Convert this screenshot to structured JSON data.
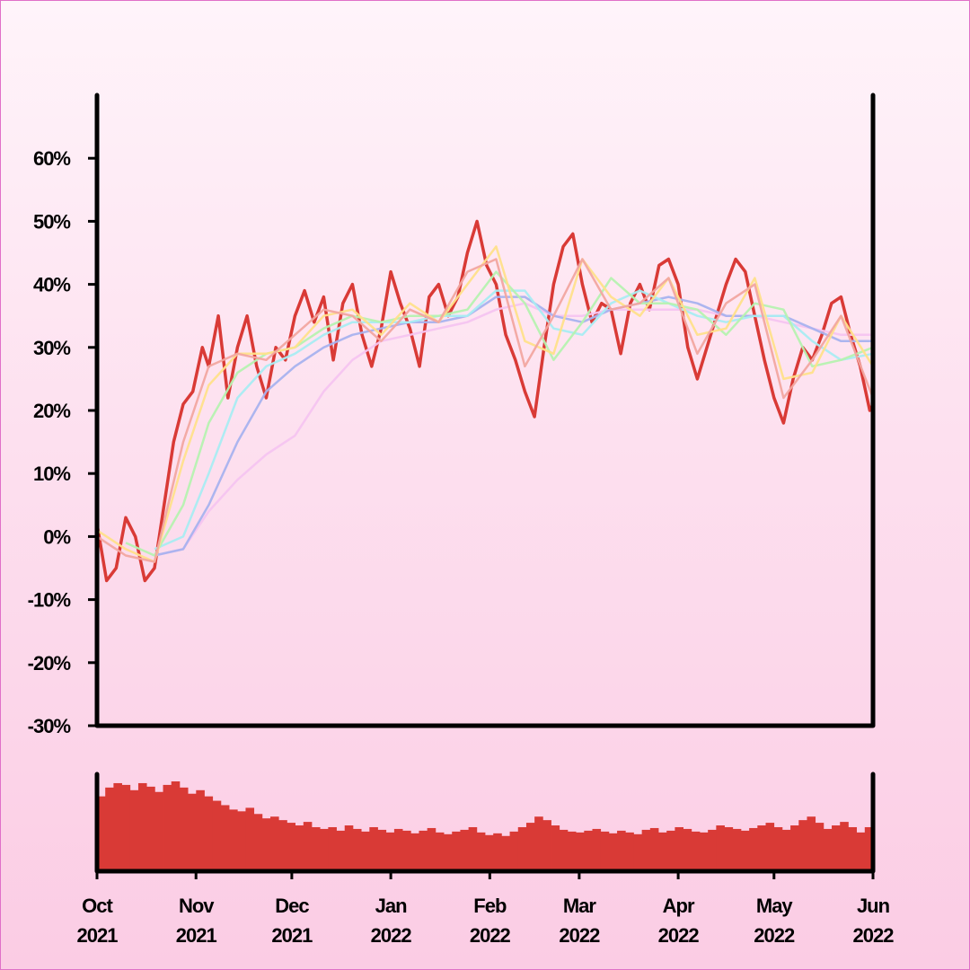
{
  "chart_data": {
    "type": "line",
    "title": "",
    "xlabel": "",
    "ylabel": "",
    "ylim": [
      -30,
      70
    ],
    "y_ticks": [
      "60%",
      "50%",
      "40%",
      "30%",
      "20%",
      "10%",
      "0%",
      "-10%",
      "-20%",
      "-30%"
    ],
    "y_tick_values": [
      60,
      50,
      40,
      30,
      20,
      10,
      0,
      -10,
      -20,
      -30
    ],
    "x_ticks": [
      {
        "month": "Oct",
        "year": "2021",
        "date": "2021-10-01"
      },
      {
        "month": "Nov",
        "year": "2021",
        "date": "2021-11-01"
      },
      {
        "month": "Dec",
        "year": "2021",
        "date": "2021-12-01"
      },
      {
        "month": "Jan",
        "year": "2022",
        "date": "2022-01-01"
      },
      {
        "month": "Feb",
        "year": "2022",
        "date": "2022-02-01"
      },
      {
        "month": "Mar",
        "year": "2022",
        "date": "2022-03-01"
      },
      {
        "month": "Apr",
        "year": "2022",
        "date": "2022-04-01"
      },
      {
        "month": "May",
        "year": "2022",
        "date": "2022-05-01"
      },
      {
        "month": "Jun",
        "year": "2022",
        "date": "2022-06-01"
      }
    ],
    "xlim": [
      "2021-10-01",
      "2022-06-01"
    ],
    "grid": false,
    "legend": "none",
    "main_series": {
      "color": "#d93a36",
      "points": [
        [
          "2021-10-01",
          2
        ],
        [
          "2021-10-04",
          -7
        ],
        [
          "2021-10-07",
          -5
        ],
        [
          "2021-10-10",
          3
        ],
        [
          "2021-10-13",
          0
        ],
        [
          "2021-10-16",
          -7
        ],
        [
          "2021-10-19",
          -5
        ],
        [
          "2021-10-22",
          5
        ],
        [
          "2021-10-25",
          15
        ],
        [
          "2021-10-28",
          21
        ],
        [
          "2021-10-31",
          23
        ],
        [
          "2021-11-03",
          30
        ],
        [
          "2021-11-05",
          27
        ],
        [
          "2021-11-08",
          35
        ],
        [
          "2021-11-11",
          22
        ],
        [
          "2021-11-14",
          30
        ],
        [
          "2021-11-17",
          35
        ],
        [
          "2021-11-20",
          27
        ],
        [
          "2021-11-23",
          22
        ],
        [
          "2021-11-26",
          30
        ],
        [
          "2021-11-29",
          28
        ],
        [
          "2021-12-02",
          35
        ],
        [
          "2021-12-05",
          39
        ],
        [
          "2021-12-08",
          34
        ],
        [
          "2021-12-11",
          38
        ],
        [
          "2021-12-14",
          28
        ],
        [
          "2021-12-17",
          37
        ],
        [
          "2021-12-20",
          40
        ],
        [
          "2021-12-23",
          32
        ],
        [
          "2021-12-26",
          27
        ],
        [
          "2021-12-29",
          33
        ],
        [
          "2022-01-01",
          42
        ],
        [
          "2022-01-04",
          37
        ],
        [
          "2022-01-07",
          33
        ],
        [
          "2022-01-10",
          27
        ],
        [
          "2022-01-13",
          38
        ],
        [
          "2022-01-16",
          40
        ],
        [
          "2022-01-19",
          35
        ],
        [
          "2022-01-22",
          38
        ],
        [
          "2022-01-25",
          45
        ],
        [
          "2022-01-28",
          50
        ],
        [
          "2022-01-31",
          43
        ],
        [
          "2022-02-03",
          40
        ],
        [
          "2022-02-06",
          32
        ],
        [
          "2022-02-09",
          28
        ],
        [
          "2022-02-12",
          23
        ],
        [
          "2022-02-15",
          19
        ],
        [
          "2022-02-18",
          30
        ],
        [
          "2022-02-21",
          40
        ],
        [
          "2022-02-24",
          46
        ],
        [
          "2022-02-27",
          48
        ],
        [
          "2022-03-02",
          40
        ],
        [
          "2022-03-05",
          34
        ],
        [
          "2022-03-08",
          37
        ],
        [
          "2022-03-11",
          36
        ],
        [
          "2022-03-14",
          29
        ],
        [
          "2022-03-17",
          37
        ],
        [
          "2022-03-20",
          40
        ],
        [
          "2022-03-23",
          36
        ],
        [
          "2022-03-26",
          43
        ],
        [
          "2022-03-29",
          44
        ],
        [
          "2022-04-01",
          40
        ],
        [
          "2022-04-04",
          30
        ],
        [
          "2022-04-07",
          25
        ],
        [
          "2022-04-10",
          30
        ],
        [
          "2022-04-13",
          35
        ],
        [
          "2022-04-16",
          40
        ],
        [
          "2022-04-19",
          44
        ],
        [
          "2022-04-22",
          42
        ],
        [
          "2022-04-25",
          35
        ],
        [
          "2022-04-28",
          28
        ],
        [
          "2022-05-01",
          22
        ],
        [
          "2022-05-04",
          18
        ],
        [
          "2022-05-07",
          25
        ],
        [
          "2022-05-10",
          30
        ],
        [
          "2022-05-13",
          28
        ],
        [
          "2022-05-16",
          32
        ],
        [
          "2022-05-19",
          37
        ],
        [
          "2022-05-22",
          38
        ],
        [
          "2022-05-25",
          32
        ],
        [
          "2022-05-28",
          27
        ],
        [
          "2022-05-31",
          20
        ],
        [
          "2022-06-01",
          21
        ]
      ]
    },
    "moving_averages": [
      {
        "color": "#f2a6a0",
        "points": [
          [
            "2021-10-01",
            0
          ],
          [
            "2021-10-10",
            -3
          ],
          [
            "2021-10-19",
            -4
          ],
          [
            "2021-10-28",
            15
          ],
          [
            "2021-11-05",
            27
          ],
          [
            "2021-11-14",
            29
          ],
          [
            "2021-11-23",
            28
          ],
          [
            "2021-12-02",
            32
          ],
          [
            "2021-12-11",
            36
          ],
          [
            "2021-12-20",
            35
          ],
          [
            "2021-12-29",
            31
          ],
          [
            "2022-01-07",
            36
          ],
          [
            "2022-01-16",
            34
          ],
          [
            "2022-01-25",
            42
          ],
          [
            "2022-02-03",
            44
          ],
          [
            "2022-02-12",
            27
          ],
          [
            "2022-02-21",
            35
          ],
          [
            "2022-03-02",
            44
          ],
          [
            "2022-03-11",
            36
          ],
          [
            "2022-03-20",
            37
          ],
          [
            "2022-03-29",
            41
          ],
          [
            "2022-04-07",
            29
          ],
          [
            "2022-04-16",
            37
          ],
          [
            "2022-04-25",
            40
          ],
          [
            "2022-05-04",
            22
          ],
          [
            "2022-05-13",
            28
          ],
          [
            "2022-05-22",
            35
          ],
          [
            "2022-06-01",
            22
          ]
        ]
      },
      {
        "color": "#ffe08a",
        "points": [
          [
            "2021-10-01",
            1
          ],
          [
            "2021-10-10",
            -2
          ],
          [
            "2021-10-19",
            -4
          ],
          [
            "2021-10-28",
            12
          ],
          [
            "2021-11-05",
            24
          ],
          [
            "2021-11-14",
            29
          ],
          [
            "2021-11-23",
            29
          ],
          [
            "2021-12-02",
            30
          ],
          [
            "2021-12-11",
            35
          ],
          [
            "2021-12-20",
            36
          ],
          [
            "2021-12-29",
            32
          ],
          [
            "2022-01-07",
            37
          ],
          [
            "2022-01-16",
            34
          ],
          [
            "2022-01-25",
            40
          ],
          [
            "2022-02-03",
            46
          ],
          [
            "2022-02-12",
            31
          ],
          [
            "2022-02-21",
            29
          ],
          [
            "2022-03-02",
            44
          ],
          [
            "2022-03-11",
            38
          ],
          [
            "2022-03-20",
            35
          ],
          [
            "2022-03-29",
            41
          ],
          [
            "2022-04-07",
            32
          ],
          [
            "2022-04-16",
            33
          ],
          [
            "2022-04-25",
            41
          ],
          [
            "2022-05-04",
            25
          ],
          [
            "2022-05-13",
            26
          ],
          [
            "2022-05-22",
            35
          ],
          [
            "2022-06-01",
            27
          ]
        ]
      },
      {
        "color": "#b6f2b0",
        "points": [
          [
            "2021-10-10",
            -1
          ],
          [
            "2021-10-19",
            -3
          ],
          [
            "2021-10-28",
            5
          ],
          [
            "2021-11-05",
            18
          ],
          [
            "2021-11-14",
            26
          ],
          [
            "2021-11-23",
            29
          ],
          [
            "2021-12-02",
            30
          ],
          [
            "2021-12-11",
            33
          ],
          [
            "2021-12-20",
            35
          ],
          [
            "2021-12-29",
            34
          ],
          [
            "2022-01-07",
            35
          ],
          [
            "2022-01-16",
            35
          ],
          [
            "2022-01-25",
            36
          ],
          [
            "2022-02-03",
            42
          ],
          [
            "2022-02-12",
            37
          ],
          [
            "2022-02-21",
            28
          ],
          [
            "2022-03-02",
            34
          ],
          [
            "2022-03-11",
            41
          ],
          [
            "2022-03-20",
            37
          ],
          [
            "2022-03-29",
            37
          ],
          [
            "2022-04-07",
            36
          ],
          [
            "2022-04-16",
            32
          ],
          [
            "2022-04-25",
            37
          ],
          [
            "2022-05-04",
            36
          ],
          [
            "2022-05-13",
            27
          ],
          [
            "2022-05-22",
            28
          ],
          [
            "2022-06-01",
            30
          ]
        ]
      },
      {
        "color": "#a9ecf2",
        "points": [
          [
            "2021-10-19",
            -2
          ],
          [
            "2021-10-28",
            0
          ],
          [
            "2021-11-05",
            10
          ],
          [
            "2021-11-14",
            22
          ],
          [
            "2021-11-23",
            27
          ],
          [
            "2021-12-02",
            29
          ],
          [
            "2021-12-11",
            32
          ],
          [
            "2021-12-20",
            34
          ],
          [
            "2021-12-29",
            34
          ],
          [
            "2022-01-07",
            34
          ],
          [
            "2022-01-16",
            35
          ],
          [
            "2022-01-25",
            35
          ],
          [
            "2022-02-03",
            39
          ],
          [
            "2022-02-12",
            39
          ],
          [
            "2022-02-21",
            33
          ],
          [
            "2022-03-02",
            32
          ],
          [
            "2022-03-11",
            37
          ],
          [
            "2022-03-20",
            39
          ],
          [
            "2022-03-29",
            37
          ],
          [
            "2022-04-07",
            35
          ],
          [
            "2022-04-16",
            34
          ],
          [
            "2022-04-25",
            35
          ],
          [
            "2022-05-04",
            35
          ],
          [
            "2022-05-13",
            31
          ],
          [
            "2022-05-22",
            28
          ],
          [
            "2022-06-01",
            29
          ]
        ]
      },
      {
        "color": "#a8b2ee",
        "points": [
          [
            "2021-10-19",
            -3
          ],
          [
            "2021-10-28",
            -2
          ],
          [
            "2021-11-05",
            5
          ],
          [
            "2021-11-14",
            15
          ],
          [
            "2021-11-23",
            23
          ],
          [
            "2021-12-02",
            27
          ],
          [
            "2021-12-11",
            30
          ],
          [
            "2021-12-20",
            32
          ],
          [
            "2021-12-29",
            33
          ],
          [
            "2022-01-07",
            34
          ],
          [
            "2022-01-16",
            34
          ],
          [
            "2022-01-25",
            35
          ],
          [
            "2022-02-03",
            38
          ],
          [
            "2022-02-12",
            38
          ],
          [
            "2022-02-21",
            35
          ],
          [
            "2022-03-02",
            34
          ],
          [
            "2022-03-11",
            36
          ],
          [
            "2022-03-20",
            37
          ],
          [
            "2022-03-29",
            38
          ],
          [
            "2022-04-07",
            37
          ],
          [
            "2022-04-16",
            35
          ],
          [
            "2022-04-25",
            35
          ],
          [
            "2022-05-04",
            35
          ],
          [
            "2022-05-13",
            33
          ],
          [
            "2022-05-22",
            31
          ],
          [
            "2022-06-01",
            31
          ]
        ]
      },
      {
        "color": "#f5c4f0",
        "points": [
          [
            "2021-10-19",
            -3
          ],
          [
            "2021-10-28",
            -2
          ],
          [
            "2021-11-05",
            4
          ],
          [
            "2021-11-14",
            9
          ],
          [
            "2021-11-23",
            13
          ],
          [
            "2021-12-02",
            16
          ],
          [
            "2021-12-11",
            23
          ],
          [
            "2021-12-20",
            28
          ],
          [
            "2021-12-29",
            31
          ],
          [
            "2022-01-07",
            32
          ],
          [
            "2022-01-16",
            33
          ],
          [
            "2022-01-25",
            34
          ],
          [
            "2022-02-03",
            36
          ],
          [
            "2022-02-12",
            37
          ],
          [
            "2022-02-21",
            35
          ],
          [
            "2022-03-02",
            35
          ],
          [
            "2022-03-11",
            36
          ],
          [
            "2022-03-20",
            36
          ],
          [
            "2022-03-29",
            36
          ],
          [
            "2022-04-07",
            36
          ],
          [
            "2022-04-16",
            35
          ],
          [
            "2022-04-25",
            35
          ],
          [
            "2022-05-04",
            34
          ],
          [
            "2022-05-13",
            33
          ],
          [
            "2022-05-22",
            32
          ],
          [
            "2022-06-01",
            32
          ]
        ]
      }
    ],
    "volume": {
      "color": "#d93a36",
      "values": [
        85,
        95,
        100,
        98,
        92,
        100,
        96,
        90,
        98,
        102,
        95,
        88,
        92,
        85,
        80,
        75,
        70,
        68,
        72,
        65,
        60,
        62,
        58,
        55,
        52,
        56,
        50,
        48,
        50,
        46,
        52,
        48,
        45,
        50,
        47,
        44,
        48,
        46,
        43,
        46,
        49,
        44,
        42,
        45,
        47,
        50,
        44,
        41,
        43,
        40,
        45,
        50,
        55,
        62,
        58,
        52,
        47,
        45,
        44,
        46,
        48,
        45,
        43,
        46,
        44,
        42,
        47,
        49,
        44,
        46,
        50,
        48,
        45,
        44,
        47,
        52,
        50,
        48,
        46,
        49,
        52,
        55,
        50,
        47,
        52,
        58,
        62,
        55,
        48,
        52,
        56,
        50,
        44,
        50
      ]
    }
  }
}
